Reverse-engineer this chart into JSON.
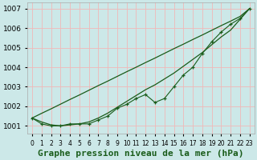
{
  "x": [
    0,
    1,
    2,
    3,
    4,
    5,
    6,
    7,
    8,
    9,
    10,
    11,
    12,
    13,
    14,
    15,
    16,
    17,
    18,
    19,
    20,
    21,
    22,
    23
  ],
  "line_measured": [
    1001.4,
    1001.1,
    1001.0,
    1001.0,
    1001.1,
    1001.1,
    1001.1,
    1001.3,
    1001.5,
    1001.9,
    1002.1,
    1002.4,
    1002.6,
    1002.2,
    1002.4,
    1003.0,
    1003.6,
    1004.0,
    1004.7,
    1005.3,
    1005.8,
    1006.2,
    1006.5,
    1007.0
  ],
  "line_straight": [
    1001.4,
    1001.64,
    1001.87,
    1002.11,
    1002.35,
    1002.58,
    1002.82,
    1003.06,
    1003.29,
    1003.53,
    1003.77,
    1004.0,
    1004.24,
    1004.47,
    1004.71,
    1004.95,
    1005.18,
    1005.42,
    1005.65,
    1005.89,
    1006.13,
    1006.36,
    1006.6,
    1007.0
  ],
  "line_smooth": [
    1001.4,
    1001.2,
    1001.05,
    1001.0,
    1001.05,
    1001.1,
    1001.2,
    1001.4,
    1001.65,
    1001.95,
    1002.25,
    1002.55,
    1002.85,
    1003.1,
    1003.4,
    1003.7,
    1004.05,
    1004.4,
    1004.75,
    1005.15,
    1005.55,
    1005.9,
    1006.45,
    1007.0
  ],
  "bg_color": "#cce8e8",
  "grid_major_color": "#f0b8b8",
  "grid_minor_color": "#e8d0d0",
  "line_color": "#1a5c1a",
  "title": "Graphe pression niveau de la mer (hPa)",
  "ylim": [
    1000.6,
    1007.3
  ],
  "yticks": [
    1001,
    1002,
    1003,
    1004,
    1005,
    1006,
    1007
  ],
  "ytick_fontsize": 6.5,
  "xtick_fontsize": 5.5,
  "xlabel_fontsize": 8
}
